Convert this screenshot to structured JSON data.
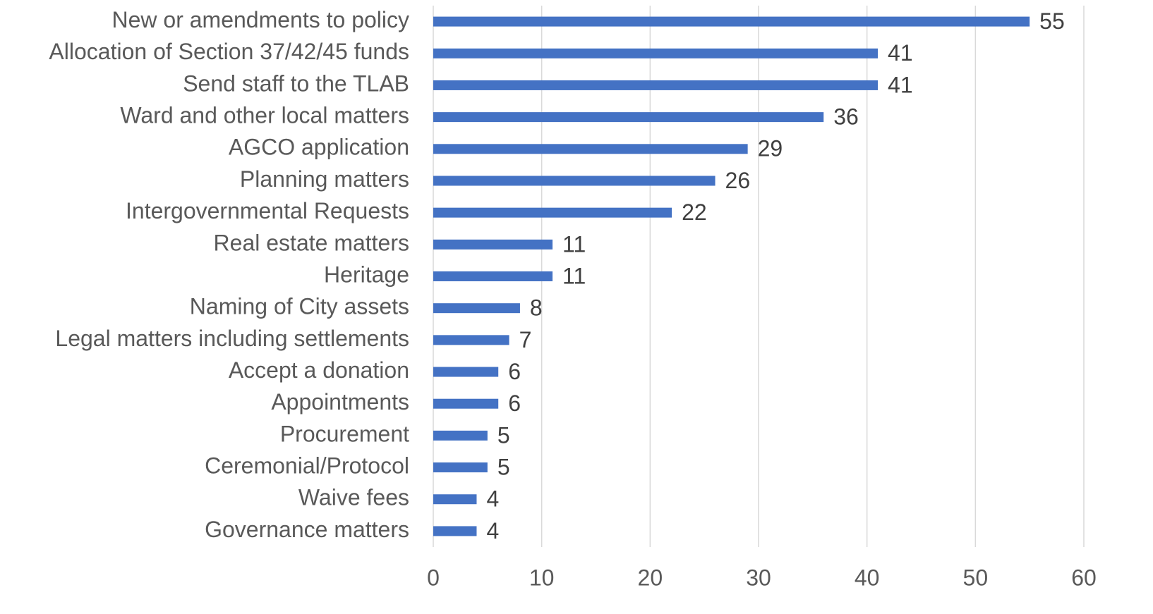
{
  "chart_data": {
    "type": "bar",
    "orientation": "horizontal",
    "categories": [
      "New or amendments to policy",
      "Allocation of Section 37/42/45 funds",
      "Send staff to the TLAB",
      "Ward and other local matters",
      "AGCO application",
      "Planning matters",
      "Intergovernmental Requests",
      "Real estate matters",
      "Heritage",
      "Naming of City assets",
      "Legal matters including settlements",
      "Accept a donation",
      "Appointments",
      "Procurement",
      "Ceremonial/Protocol",
      "Waive fees",
      "Governance matters"
    ],
    "values": [
      55,
      41,
      41,
      36,
      29,
      26,
      22,
      11,
      11,
      8,
      7,
      6,
      6,
      5,
      5,
      4,
      4
    ],
    "color": "#4472c4",
    "xlim": [
      0,
      60
    ],
    "xticks": [
      0,
      10,
      20,
      30,
      40,
      50,
      60
    ],
    "grid": true
  }
}
